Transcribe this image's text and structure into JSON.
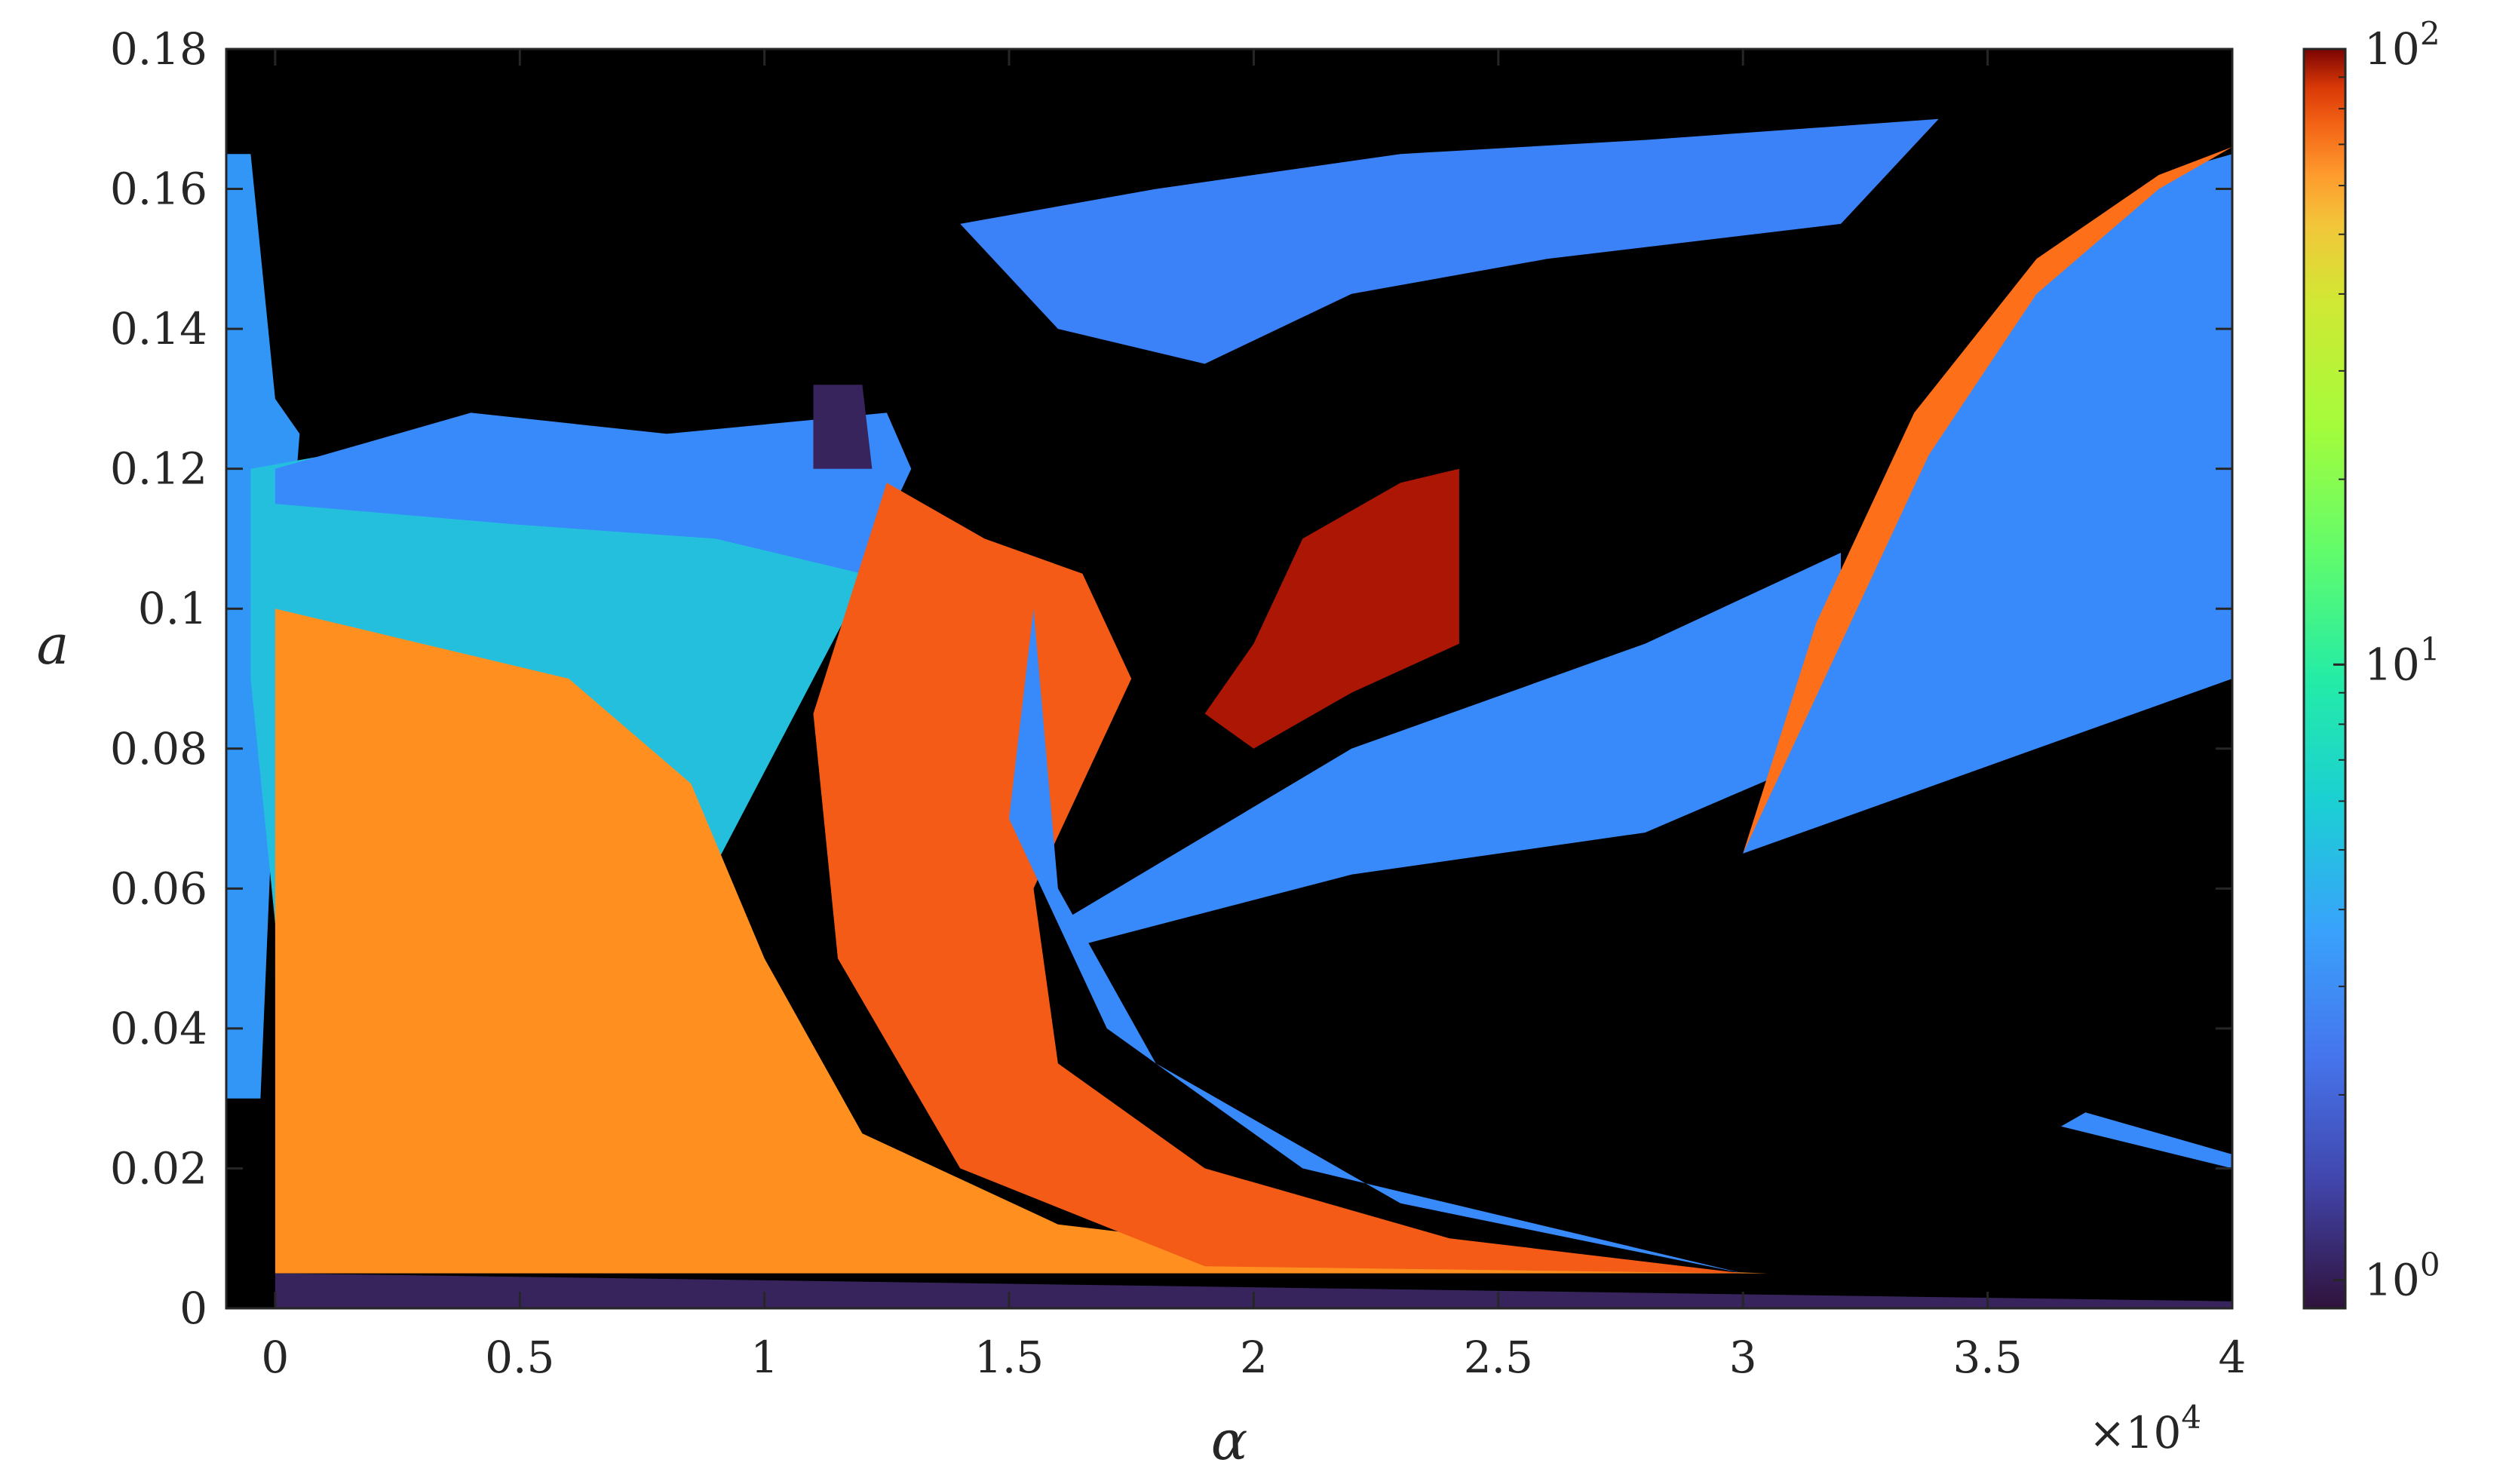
{
  "chart_data": {
    "type": "heatmap",
    "title": "",
    "xlabel": "α",
    "ylabel": "a",
    "x_multiplier": "×10",
    "x_multiplier_exp": "4",
    "xlim": [
      -0.1,
      4
    ],
    "ylim": [
      0,
      0.18
    ],
    "x_ticks": [
      0,
      0.5,
      1,
      1.5,
      2,
      2.5,
      3,
      3.5,
      4
    ],
    "x_tick_labels": [
      "0",
      "0.5",
      "1",
      "1.5",
      "2",
      "2.5",
      "3",
      "3.5",
      "4"
    ],
    "y_ticks": [
      0,
      0.02,
      0.04,
      0.06,
      0.08,
      0.1,
      0.12,
      0.14,
      0.16,
      0.18
    ],
    "y_tick_labels": [
      "0",
      "0.02",
      "0.04",
      "0.06",
      "0.08",
      "0.1",
      "0.12",
      "0.14",
      "0.16",
      "0.18"
    ],
    "colorbar": {
      "scale": "log",
      "range": [
        0.9,
        100
      ],
      "ticks": [
        1,
        10,
        100
      ],
      "tick_base": "10",
      "tick_exps": [
        "0",
        "1",
        "2"
      ],
      "colormap": "turbo"
    },
    "background_color": "#000000",
    "grid": false,
    "regions": [
      {
        "desc": "left-edge band",
        "value": 2.2,
        "poly": [
          [
            -0.1,
            0.165
          ],
          [
            -0.05,
            0.165
          ],
          [
            0.0,
            0.13
          ],
          [
            0.05,
            0.125
          ],
          [
            0.0,
            0.08
          ],
          [
            -0.03,
            0.03
          ],
          [
            -0.1,
            0.03
          ]
        ]
      },
      {
        "desc": "left cyan fan",
        "value": 3.0,
        "poly": [
          [
            -0.05,
            0.12
          ],
          [
            0.35,
            0.125
          ],
          [
            0.75,
            0.12
          ],
          [
            1.0,
            0.115
          ],
          [
            1.25,
            0.11
          ],
          [
            1.1,
            0.09
          ],
          [
            0.95,
            0.07
          ],
          [
            0.8,
            0.05
          ],
          [
            0.6,
            0.04
          ],
          [
            0.3,
            0.05
          ],
          [
            0.0,
            0.055
          ],
          [
            -0.05,
            0.09
          ]
        ]
      },
      {
        "desc": "blue upper tongue",
        "value": 2.0,
        "poly": [
          [
            0.0,
            0.12
          ],
          [
            0.4,
            0.128
          ],
          [
            0.8,
            0.125
          ],
          [
            1.25,
            0.128
          ],
          [
            1.3,
            0.12
          ],
          [
            1.2,
            0.105
          ],
          [
            0.9,
            0.11
          ],
          [
            0.5,
            0.112
          ],
          [
            0.0,
            0.115
          ]
        ]
      },
      {
        "desc": "orange left fan",
        "value": 28,
        "poly": [
          [
            0.0,
            0.1
          ],
          [
            0.3,
            0.095
          ],
          [
            0.6,
            0.09
          ],
          [
            0.85,
            0.075
          ],
          [
            1.0,
            0.05
          ],
          [
            1.2,
            0.025
          ],
          [
            1.6,
            0.012
          ],
          [
            2.2,
            0.007
          ],
          [
            3.05,
            0.005
          ],
          [
            0.0,
            0.005
          ]
        ]
      },
      {
        "desc": "orange central band",
        "value": 40,
        "poly": [
          [
            1.25,
            0.118
          ],
          [
            1.45,
            0.11
          ],
          [
            1.65,
            0.105
          ],
          [
            1.75,
            0.09
          ],
          [
            1.55,
            0.06
          ],
          [
            1.6,
            0.035
          ],
          [
            1.9,
            0.02
          ],
          [
            2.4,
            0.01
          ],
          [
            3.0,
            0.005
          ],
          [
            1.9,
            0.006
          ],
          [
            1.4,
            0.02
          ],
          [
            1.15,
            0.05
          ],
          [
            1.1,
            0.085
          ]
        ]
      },
      {
        "desc": "dark red lobe",
        "value": 70,
        "poly": [
          [
            1.9,
            0.085
          ],
          [
            2.0,
            0.095
          ],
          [
            2.1,
            0.11
          ],
          [
            2.3,
            0.118
          ],
          [
            2.42,
            0.12
          ],
          [
            2.42,
            0.095
          ],
          [
            2.2,
            0.088
          ],
          [
            2.0,
            0.08
          ]
        ]
      },
      {
        "desc": "blue streak",
        "value": 2.0,
        "poly": [
          [
            1.55,
            0.1
          ],
          [
            1.6,
            0.06
          ],
          [
            1.8,
            0.035
          ],
          [
            2.3,
            0.015
          ],
          [
            3.0,
            0.005
          ],
          [
            2.1,
            0.02
          ],
          [
            1.7,
            0.04
          ],
          [
            1.5,
            0.07
          ]
        ]
      },
      {
        "desc": "blue wedge",
        "value": 2.0,
        "poly": [
          [
            1.6,
            0.055
          ],
          [
            2.2,
            0.08
          ],
          [
            2.8,
            0.095
          ],
          [
            3.2,
            0.108
          ],
          [
            3.2,
            0.08
          ],
          [
            2.8,
            0.068
          ],
          [
            2.2,
            0.062
          ],
          [
            1.65,
            0.052
          ]
        ]
      },
      {
        "desc": "upper blue ridge",
        "value": 1.9,
        "poly": [
          [
            1.4,
            0.155
          ],
          [
            1.8,
            0.16
          ],
          [
            2.3,
            0.165
          ],
          [
            2.8,
            0.167
          ],
          [
            3.4,
            0.17
          ],
          [
            3.2,
            0.155
          ],
          [
            2.6,
            0.15
          ],
          [
            2.2,
            0.145
          ],
          [
            1.9,
            0.135
          ],
          [
            1.6,
            0.14
          ]
        ]
      },
      {
        "desc": "right blue block",
        "value": 2.0,
        "poly": [
          [
            3.0,
            0.065
          ],
          [
            3.15,
            0.095
          ],
          [
            3.35,
            0.125
          ],
          [
            3.6,
            0.148
          ],
          [
            3.85,
            0.162
          ],
          [
            4.0,
            0.165
          ],
          [
            4.0,
            0.09
          ],
          [
            3.6,
            0.08
          ],
          [
            3.2,
            0.07
          ]
        ]
      },
      {
        "desc": "right orange rim",
        "value": 35,
        "poly": [
          [
            3.0,
            0.065
          ],
          [
            3.15,
            0.098
          ],
          [
            3.35,
            0.128
          ],
          [
            3.6,
            0.15
          ],
          [
            3.85,
            0.162
          ],
          [
            4.0,
            0.166
          ],
          [
            3.85,
            0.16
          ],
          [
            3.6,
            0.145
          ],
          [
            3.38,
            0.122
          ],
          [
            3.18,
            0.092
          ]
        ]
      },
      {
        "desc": "top dark cap",
        "value": 1.0,
        "poly": [
          [
            1.1,
            0.132
          ],
          [
            1.2,
            0.132
          ],
          [
            1.22,
            0.12
          ],
          [
            1.1,
            0.12
          ]
        ]
      },
      {
        "desc": "lower right sliver",
        "value": 2.0,
        "poly": [
          [
            3.65,
            0.026
          ],
          [
            4.0,
            0.02
          ],
          [
            4.0,
            0.022
          ],
          [
            3.7,
            0.028
          ]
        ]
      },
      {
        "desc": "bottom dark strip",
        "value": 1.0,
        "poly": [
          [
            0.0,
            0.005
          ],
          [
            4.0,
            0.001
          ],
          [
            4.0,
            0.0
          ],
          [
            0.0,
            0.0
          ]
        ]
      }
    ]
  }
}
